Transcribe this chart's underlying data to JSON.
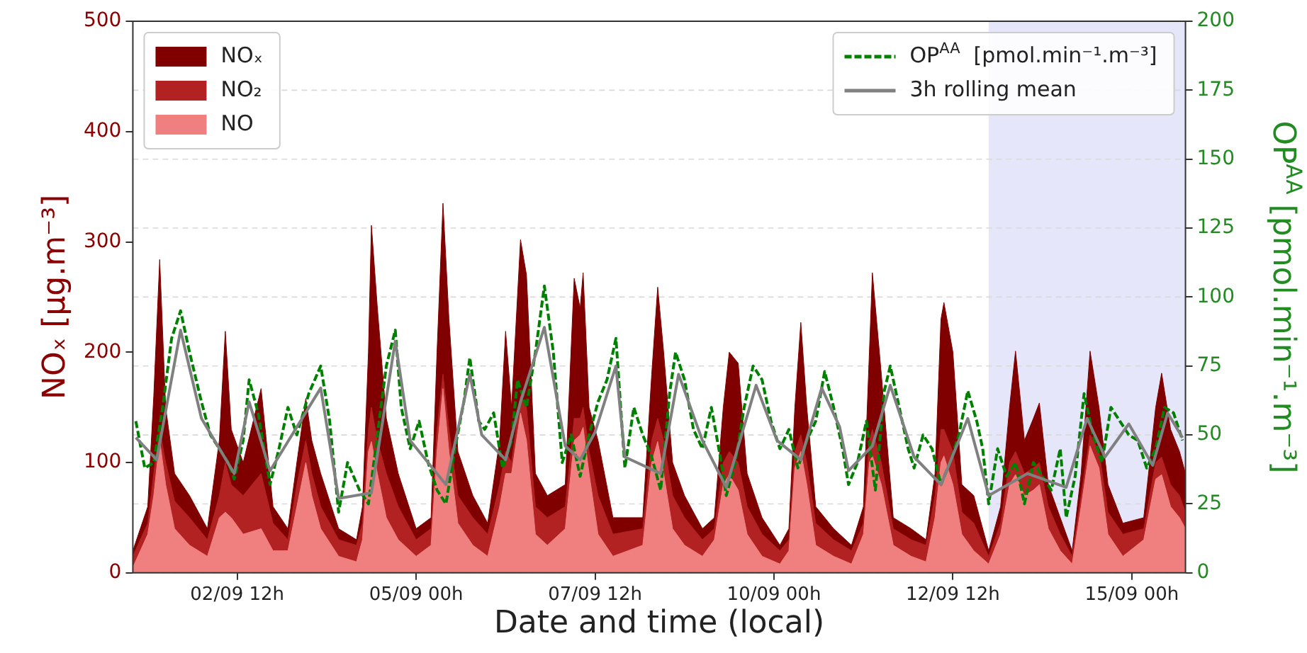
{
  "chart_data": {
    "type": "area",
    "xlabel": "Date and time (local)",
    "ylabel": "NOₓ [µg.m⁻³]",
    "y2label": "OP$^{AA}$ [pmol.min⁻¹.m⁻³]",
    "xlim": [
      "--09-01T01:00",
      "--09-15T18:00"
    ],
    "xticks": [
      {
        "value": "--09-02T12:00",
        "label": "02/09 12h"
      },
      {
        "value": "--09-05T00:00",
        "label": "05/09 00h"
      },
      {
        "value": "--09-07T12:00",
        "label": "07/09 12h"
      },
      {
        "value": "--09-10T00:00",
        "label": "10/09 00h"
      },
      {
        "value": "--09-12T12:00",
        "label": "12/09 12h"
      },
      {
        "value": "--09-15T00:00",
        "label": "15/09 00h"
      }
    ],
    "ylim": [
      0,
      500
    ],
    "yticks": [
      0,
      100,
      200,
      300,
      400,
      500
    ],
    "y2lim": [
      0,
      200
    ],
    "y2ticks": [
      0,
      25,
      50,
      75,
      100,
      125,
      150,
      175,
      200
    ],
    "grid": "y2",
    "legend": "top left",
    "bands": [
      {
        "axis": "x",
        "from": "--09-13T00:00",
        "to": "--09-15T18:00",
        "color": "#e6e6fa"
      }
    ],
    "x": [
      "--09-01T01:00",
      "--09-01T06:00",
      "--09-01T08:00",
      "--09-01T10:00",
      "--09-01T12:00",
      "--09-01T15:00",
      "--09-01T20:00",
      "--09-02T02:00",
      "--09-02T06:00",
      "--09-02T08:00",
      "--09-02T10:00",
      "--09-02T14:00",
      "--09-02T20:00",
      "--09-03T00:00",
      "--09-03T05:00",
      "--09-03T08:00",
      "--09-03T11:00",
      "--09-03T13:00",
      "--09-03T16:00",
      "--09-03T22:00",
      "--09-04T04:00",
      "--09-04T06:00",
      "--09-04T08:00",
      "--09-04T09:00",
      "--09-04T11:00",
      "--09-04T14:00",
      "--09-04T18:00",
      "--09-05T00:00",
      "--09-05T05:00",
      "--09-05T07:00",
      "--09-05T09:00",
      "--09-05T11:00",
      "--09-05T14:00",
      "--09-05T19:00",
      "--09-06T00:00",
      "--09-06T04:00",
      "--09-06T06:00",
      "--09-06T08:00",
      "--09-06T11:00",
      "--09-06T13:00",
      "--09-06T16:00",
      "--09-06T20:00",
      "--09-07T02:00",
      "--09-07T05:00",
      "--09-07T07:00",
      "--09-07T08:00",
      "--09-07T10:00",
      "--09-07T13:00",
      "--09-07T18:00",
      "--09-08T04:00",
      "--09-08T07:00",
      "--09-08T09:00",
      "--09-08T11:00",
      "--09-08T14:00",
      "--09-08T18:00",
      "--09-09T00:00",
      "--09-09T04:00",
      "--09-09T07:00",
      "--09-09T09:00",
      "--09-09T12:00",
      "--09-09T15:00",
      "--09-09T20:00",
      "--09-10T02:00",
      "--09-10T05:00",
      "--09-10T07:00",
      "--09-10T09:00",
      "--09-10T11:00",
      "--09-10T14:00",
      "--09-10T20:00",
      "--09-11T02:00",
      "--09-11T06:00",
      "--09-11T08:00",
      "--09-11T09:00",
      "--09-11T12:00",
      "--09-11T16:00",
      "--09-11T22:00",
      "--09-12T03:00",
      "--09-12T06:00",
      "--09-12T08:00",
      "--09-12T09:00",
      "--09-12T12:00",
      "--09-12T15:00",
      "--09-12T19:00",
      "--09-13T00:00",
      "--09-13T04:00",
      "--09-13T07:00",
      "--09-13T09:00",
      "--09-13T12:00",
      "--09-13T15:00",
      "--09-13T17:00",
      "--09-13T20:00",
      "--09-14T00:00",
      "--09-14T04:00",
      "--09-14T07:00",
      "--09-14T10:00",
      "--09-14T13:00",
      "--09-14T16:00",
      "--09-14T21:00",
      "--09-15T04:00",
      "--09-15T08:00",
      "--09-15T10:00",
      "--09-15T13:00",
      "--09-15T16:00",
      "--09-15T18:00"
    ],
    "series": [
      {
        "name": "NOₓ",
        "color": "#800000",
        "values": [
          20,
          60,
          160,
          284,
          150,
          90,
          70,
          40,
          120,
          219,
          130,
          100,
          167,
          60,
          40,
          100,
          158,
          120,
          90,
          40,
          30,
          60,
          200,
          315,
          240,
          140,
          90,
          40,
          50,
          200,
          335,
          230,
          110,
          70,
          45,
          120,
          219,
          150,
          302,
          270,
          90,
          70,
          80,
          267,
          240,
          272,
          150,
          120,
          50,
          50,
          180,
          259,
          200,
          100,
          70,
          40,
          50,
          150,
          200,
          190,
          90,
          50,
          25,
          40,
          150,
          227,
          150,
          60,
          40,
          25,
          60,
          200,
          272,
          180,
          50,
          40,
          30,
          90,
          230,
          245,
          200,
          80,
          70,
          20,
          60,
          150,
          201,
          120,
          140,
          154,
          80,
          50,
          20,
          90,
          201,
          150,
          80,
          45,
          50,
          150,
          181,
          130,
          110,
          90
        ]
      },
      {
        "name": "NO₂",
        "color": "#b22222",
        "values": [
          15,
          45,
          90,
          130,
          100,
          65,
          50,
          30,
          70,
          100,
          80,
          70,
          90,
          45,
          30,
          80,
          120,
          90,
          60,
          30,
          25,
          45,
          130,
          150,
          120,
          90,
          60,
          30,
          40,
          130,
          180,
          130,
          70,
          50,
          35,
          80,
          110,
          100,
          160,
          150,
          60,
          50,
          60,
          140,
          140,
          150,
          110,
          70,
          35,
          40,
          120,
          140,
          120,
          70,
          50,
          30,
          40,
          100,
          110,
          100,
          60,
          35,
          20,
          30,
          110,
          125,
          100,
          45,
          30,
          20,
          45,
          120,
          130,
          100,
          40,
          30,
          25,
          70,
          130,
          130,
          110,
          55,
          45,
          15,
          45,
          100,
          110,
          90,
          95,
          100,
          60,
          35,
          15,
          70,
          125,
          110,
          55,
          35,
          40,
          100,
          105,
          80,
          70,
          55
        ]
      },
      {
        "name": "NO",
        "color": "#f08080",
        "values": [
          5,
          35,
          70,
          120,
          80,
          40,
          25,
          15,
          50,
          55,
          50,
          35,
          40,
          20,
          20,
          60,
          100,
          70,
          40,
          15,
          10,
          30,
          110,
          119,
          90,
          50,
          30,
          15,
          25,
          110,
          167,
          110,
          45,
          25,
          15,
          60,
          90,
          90,
          145,
          120,
          35,
          25,
          40,
          120,
          125,
          132,
          90,
          35,
          15,
          25,
          100,
          119,
          90,
          40,
          25,
          15,
          30,
          80,
          89,
          75,
          35,
          15,
          8,
          20,
          95,
          110,
          80,
          25,
          15,
          8,
          35,
          100,
          106,
          80,
          25,
          15,
          10,
          50,
          100,
          106,
          80,
          35,
          20,
          8,
          35,
          80,
          89,
          70,
          75,
          80,
          40,
          20,
          8,
          60,
          115,
          95,
          35,
          15,
          30,
          85,
          89,
          60,
          50,
          40
        ]
      },
      {
        "name": "OP$^{AA}$  [pmol.min⁻¹.m⁻³]",
        "type": "line",
        "axis": "y2",
        "color": "#008000",
        "line_style": "dashed",
        "x": [
          "--09-01T02:00",
          "--09-01T05:00",
          "--09-01T08:00",
          "--09-01T11:00",
          "--09-01T14:00",
          "--09-01T17:00",
          "--09-01T20:00",
          "--09-02T00:00",
          "--09-02T03:00",
          "--09-02T06:00",
          "--09-02T09:00",
          "--09-02T11:00",
          "--09-02T14:00",
          "--09-02T16:00",
          "--09-02T19:00",
          "--09-02T23:00",
          "--09-03T02:00",
          "--09-03T05:00",
          "--09-03T08:00",
          "--09-03T12:00",
          "--09-03T16:00",
          "--09-03T19:00",
          "--09-03T22:00",
          "--09-04T01:00",
          "--09-04T05:00",
          "--09-04T08:00",
          "--09-04T11:00",
          "--09-04T14:00",
          "--09-04T17:00",
          "--09-04T19:00",
          "--09-04T22:00",
          "--09-05T01:00",
          "--09-05T04:00",
          "--09-05T07:00",
          "--09-05T10:00",
          "--09-05T13:00",
          "--09-05T16:00",
          "--09-05T18:00",
          "--09-05T21:00",
          "--09-05T23:00",
          "--09-06T02:00",
          "--09-06T05:00",
          "--09-06T08:00",
          "--09-06T10:00",
          "--09-06T13:00",
          "--09-06T16:00",
          "--09-06T19:00",
          "--09-06T22:00",
          "--09-07T01:00",
          "--09-07T04:00",
          "--09-07T07:00",
          "--09-07T10:00",
          "--09-07T13:00",
          "--09-07T16:00",
          "--09-07T19:00",
          "--09-07T22:00",
          "--09-08T01:00",
          "--09-08T04:00",
          "--09-08T07:00",
          "--09-08T10:00",
          "--09-08T13:00",
          "--09-08T15:00",
          "--09-08T18:00",
          "--09-08T21:00",
          "--09-09T00:00",
          "--09-09T03:00",
          "--09-09T06:00",
          "--09-09T08:00",
          "--09-09T11:00",
          "--09-09T14:00",
          "--09-09T17:00",
          "--09-09T20:00",
          "--09-09T23:00",
          "--09-10T02:00",
          "--09-10T05:00",
          "--09-10T08:00",
          "--09-10T11:00",
          "--09-10T14:00",
          "--09-10T17:00",
          "--09-10T20:00",
          "--09-10T23:00",
          "--09-11T01:00",
          "--09-11T04:00",
          "--09-11T07:00",
          "--09-11T10:00",
          "--09-11T13:00",
          "--09-11T15:00",
          "--09-11T18:00",
          "--09-11T21:00",
          "--09-11T23:00",
          "--09-12T02:00",
          "--09-12T05:00",
          "--09-12T08:00",
          "--09-12T11:00",
          "--09-12T14:00",
          "--09-12T17:00",
          "--09-12T20:00",
          "--09-12T22:00",
          "--09-13T00:00",
          "--09-13T03:00",
          "--09-13T06:00",
          "--09-13T09:00",
          "--09-13T12:00",
          "--09-13T15:00",
          "--09-13T18:00",
          "--09-13T21:00",
          "--09-14T00:00",
          "--09-14T02:00",
          "--09-14T05:00",
          "--09-14T08:00",
          "--09-14T11:00",
          "--09-14T14:00",
          "--09-14T17:00",
          "--09-14T20:00",
          "--09-14T23:00",
          "--09-15T02:00",
          "--09-15T05:00",
          "--09-15T08:00",
          "--09-15T11:00",
          "--09-15T14:00",
          "--09-15T17:00"
        ],
        "values": [
          55,
          38,
          40,
          60,
          85,
          95,
          80,
          62,
          50,
          45,
          40,
          34,
          48,
          70,
          58,
          32,
          45,
          60,
          50,
          65,
          75,
          55,
          22,
          40,
          30,
          25,
          50,
          75,
          88,
          60,
          45,
          55,
          40,
          30,
          25,
          45,
          62,
          78,
          55,
          52,
          58,
          38,
          48,
          70,
          60,
          80,
          104,
          80,
          40,
          50,
          35,
          50,
          62,
          70,
          85,
          38,
          60,
          50,
          42,
          30,
          65,
          80,
          70,
          52,
          45,
          60,
          42,
          28,
          40,
          60,
          75,
          70,
          55,
          45,
          52,
          38,
          48,
          55,
          73,
          60,
          45,
          32,
          40,
          55,
          30,
          66,
          75,
          60,
          45,
          38,
          50,
          45,
          32,
          40,
          50,
          66,
          55,
          45,
          25,
          45,
          35,
          40,
          25,
          40,
          35,
          30,
          45,
          20,
          35,
          65,
          50,
          40,
          60,
          55,
          50,
          48,
          38,
          45,
          60,
          58,
          48
        ]
      },
      {
        "name": "3h rolling mean",
        "type": "line",
        "axis": "y2",
        "color": "#808080",
        "line_style": "solid",
        "x": [
          "--09-01T02:00",
          "--09-01T09:00",
          "--09-01T17:00",
          "--09-02T00:00",
          "--09-02T11:00",
          "--09-02T16:00",
          "--09-02T23:00",
          "--09-03T16:00",
          "--09-03T22:00",
          "--09-04T09:00",
          "--09-04T17:00",
          "--09-04T22:00",
          "--09-05T10:00",
          "--09-05T18:00",
          "--09-05T22:00",
          "--09-06T06:00",
          "--09-06T11:00",
          "--09-06T19:00",
          "--09-07T02:00",
          "--09-07T07:00",
          "--09-07T12:00",
          "--09-07T19:00",
          "--09-07T22:00",
          "--09-08T10:00",
          "--09-08T16:00",
          "--09-09T00:00",
          "--09-09T08:00",
          "--09-09T18:00",
          "--09-10T01:00",
          "--09-10T09:00",
          "--09-10T16:00",
          "--09-10T22:00",
          "--09-11T01:00",
          "--09-11T09:00",
          "--09-11T15:00",
          "--09-11T23:00",
          "--09-12T08:00",
          "--09-12T17:00",
          "--09-13T00:00",
          "--09-13T13:00",
          "--09-14T02:00",
          "--09-14T09:00",
          "--09-14T15:00",
          "--09-14T23:00",
          "--09-15T07:00",
          "--09-15T12:00",
          "--09-15T17:00"
        ],
        "values": [
          49,
          41,
          88,
          56,
          36,
          62,
          37,
          67,
          27,
          29,
          84,
          48,
          32,
          72,
          50,
          41,
          62,
          89,
          46,
          41,
          51,
          75,
          42,
          36,
          72,
          48,
          31,
          68,
          48,
          41,
          67,
          53,
          37,
          46,
          68,
          42,
          32,
          56,
          28,
          36,
          31,
          56,
          42,
          54,
          39,
          58,
          49
        ]
      }
    ]
  }
}
